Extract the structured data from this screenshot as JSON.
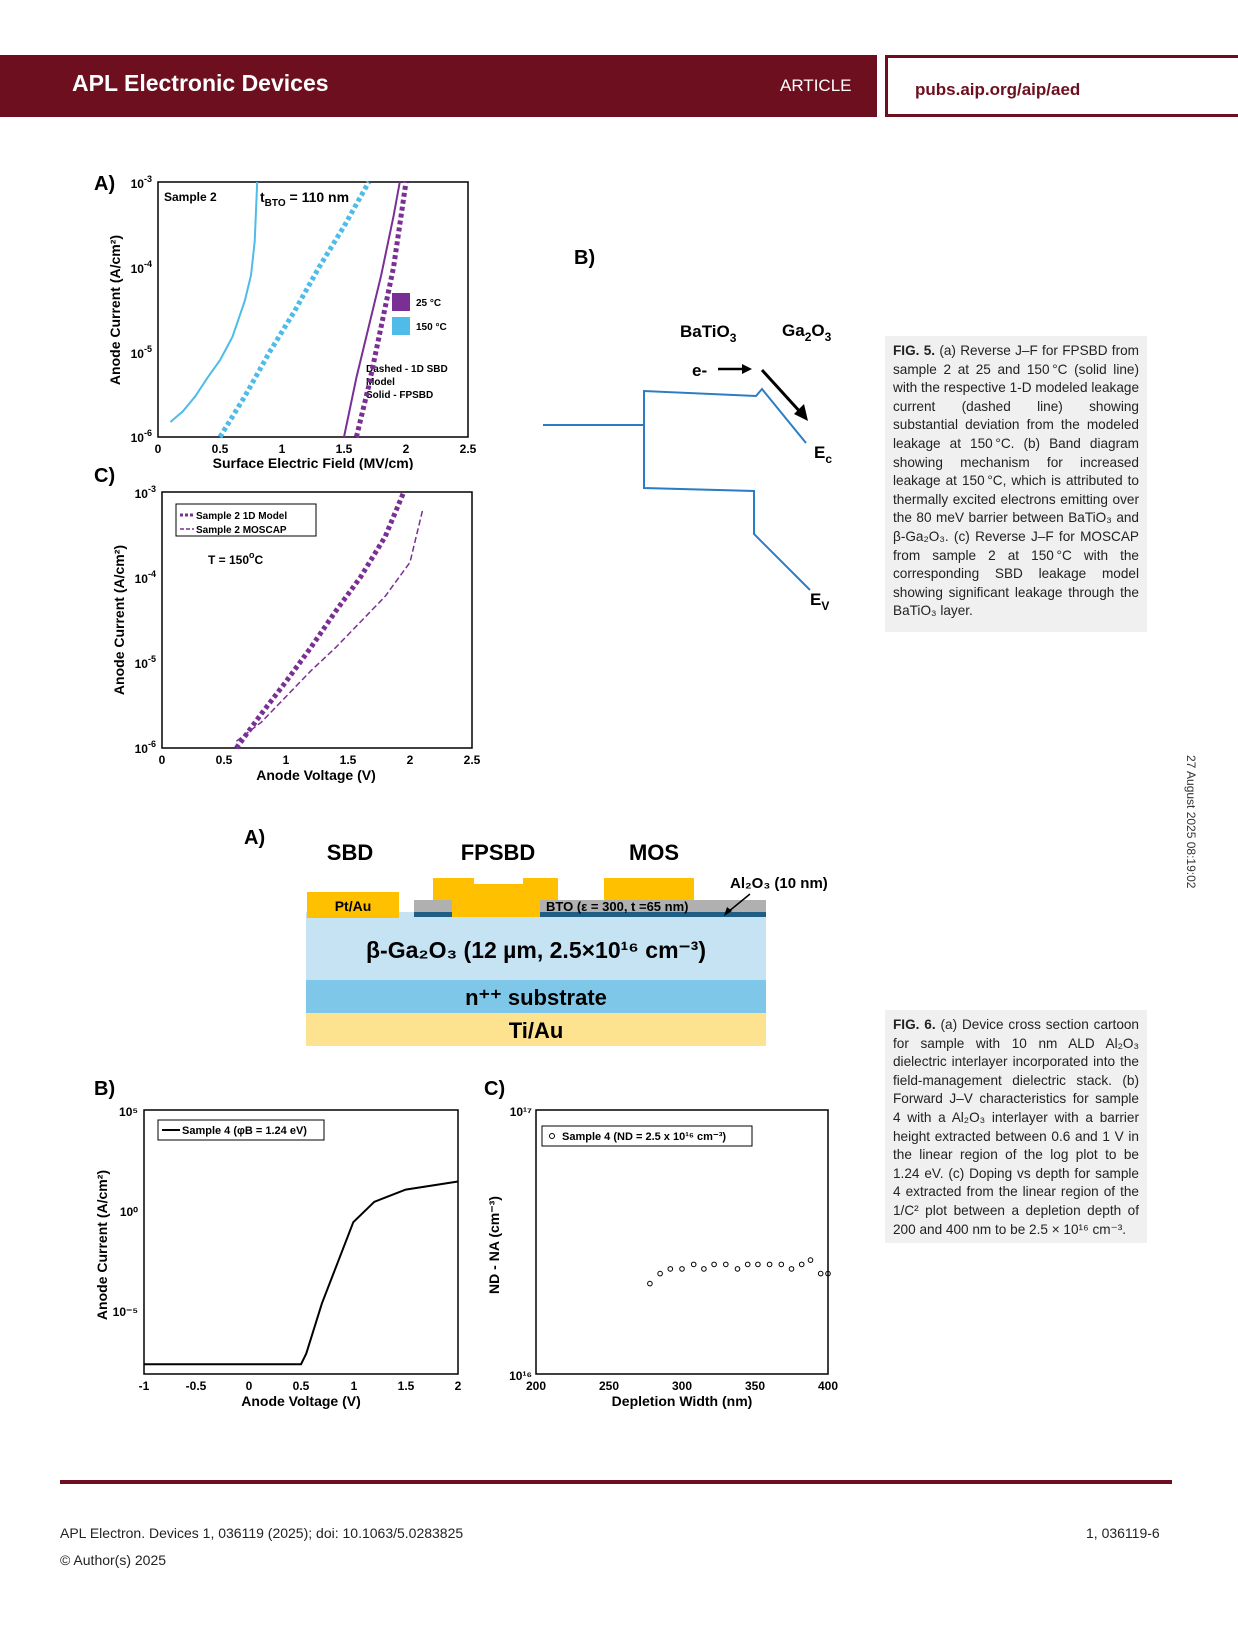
{
  "header": {
    "journal": "APL Electronic Devices",
    "article_label": "ARTICLE",
    "url": "pubs.aip.org/aip/aed"
  },
  "side_stamp": "27 August 2025 08:19:02",
  "fig5": {
    "panel_a": {
      "label": "A)",
      "sample_text": "Sample 2",
      "thickness_text_prefix": "t",
      "thickness_text_sub": "BTO",
      "thickness_text_suffix": " = 110 nm",
      "legend": [
        "25 °C",
        "150 °C"
      ],
      "note_lines": [
        "Dashed - 1D SBD",
        "Model",
        "Solid - FPSBD"
      ],
      "xlabel": "Surface Electric Field (MV/cm)",
      "ylabel": "Anode Current (A/cm²)",
      "xticks": [
        "0",
        "0.5",
        "1",
        "1.5",
        "2",
        "2.5"
      ],
      "yticks": [
        "10",
        "10",
        "10",
        "10"
      ],
      "ytick_exps": [
        "-3",
        "-4",
        "-5",
        "-6"
      ],
      "colors": {
        "t25": "#7a2f94",
        "t150": "#4fbbe8"
      }
    },
    "panel_b": {
      "label": "B)",
      "left_material": "BaTiO",
      "left_material_sub": "3",
      "right_material": "Ga",
      "right_material_sub1": "2",
      "right_material_mid": "O",
      "right_material_sub2": "3",
      "electron": "e-",
      "ec_label": "E",
      "ec_sub": "c",
      "ev_label": "E",
      "ev_sub": "V",
      "line_color": "#2a7dc4"
    },
    "panel_c": {
      "label": "C)",
      "legend": [
        "Sample 2 1D Model",
        "Sample 2 MOSCAP"
      ],
      "temp_prefix": "T = 150",
      "temp_sup": "o",
      "temp_suffix": "C",
      "xlabel": "Anode Voltage (V)",
      "ylabel": "Anode Current (A/cm²)",
      "xticks": [
        "0",
        "0.5",
        "1",
        "1.5",
        "2",
        "2.5"
      ],
      "yticks": [
        "10",
        "10",
        "10",
        "10"
      ],
      "ytick_exps": [
        "-3",
        "-4",
        "-5",
        "-6"
      ]
    },
    "caption_label": "FIG. 5.",
    "caption_text": " (a) Reverse J–F for FPSBD from sample 2 at 25 and 150 °C (solid line) with the respective 1-D modeled leakage current (dashed line) showing substantial deviation from the modeled leakage at 150 °C. (b) Band diagram showing mechanism for increased leakage at 150 °C, which is attributed to thermally excited electrons emitting over the 80 meV barrier between BaTiO₃ and β-Ga₂O₃. (c) Reverse J–F for MOSCAP from sample 2 at 150 °C with the corresponding SBD leakage model showing significant leakage through the BaTiO₃ layer."
  },
  "fig6": {
    "panel_a": {
      "label": "A)",
      "sbd": "SBD",
      "fpsbd": "FPSBD",
      "mos": "MOS",
      "contact": "Pt/Au",
      "bto": "BTO (ε = 300, t =65 nm)",
      "al2o3": "Al₂O₃ (10 nm)",
      "ga2o3": "β-Ga₂O₃ (12 µm, 2.5×10¹⁶ cm⁻³)",
      "substrate": "n⁺⁺ substrate",
      "backside": "Ti/Au",
      "colors": {
        "metal": "#ffc000",
        "ga2o3": "#c6e3f3",
        "substrate": "#7fc7e8",
        "tiau": "#fde28f",
        "bto": "#b0b0b0",
        "al2o3": "#1f5f86"
      }
    },
    "panel_b": {
      "label": "B)",
      "legend": "Sample 4 (φB = 1.24 eV)",
      "xlabel": "Anode Voltage (V)",
      "ylabel": "Anode Current (A/cm²)",
      "xticks": [
        "-1",
        "-0.5",
        "0",
        "0.5",
        "1",
        "1.5",
        "2"
      ],
      "yticks": [
        "10⁵",
        "10⁰",
        "10⁻⁵"
      ]
    },
    "panel_c": {
      "label": "C)",
      "legend": "Sample 4 (ND = 2.5 x 10¹⁶ cm⁻³)",
      "xlabel": "Depletion Width (nm)",
      "ylabel": "ND - NA (cm⁻³)",
      "xticks": [
        "200",
        "250",
        "300",
        "350",
        "400"
      ],
      "yticks": [
        "10¹⁷",
        "10¹⁶"
      ]
    },
    "caption_label": "FIG. 6.",
    "caption_text": " (a) Device cross section cartoon for sample with 10 nm ALD Al₂O₃ dielectric interlayer incorporated into the field-management dielectric stack. (b) Forward J–V characteristics for sample 4 with a Al₂O₃ interlayer with a barrier height extracted between 0.6 and 1 V in the linear region of the log plot to be 1.24 eV. (c) Doping vs depth for sample 4 extracted from the linear region of the 1/C² plot between a depletion depth of 200 and 400 nm to be 2.5 × 10¹⁶ cm⁻³."
  },
  "chart_data": [
    {
      "type": "line",
      "title": "",
      "xlabel": "Surface Electric Field (MV/cm)",
      "ylabel": "Anode Current (A/cm²)",
      "xlim": [
        0,
        2.5
      ],
      "ylim": [
        1e-06,
        0.001
      ],
      "yscale": "log",
      "series": [
        {
          "name": "150 °C",
          "style": "solid",
          "x": [
            0.1,
            0.2,
            0.3,
            0.4,
            0.5,
            0.6,
            0.7,
            0.75,
            0.78,
            0.8
          ],
          "y": [
            1.5e-06,
            2e-06,
            3e-06,
            5e-06,
            8e-06,
            1.5e-05,
            4e-05,
            8e-05,
            0.0002,
            0.001
          ]
        },
        {
          "name": "150 °C",
          "style": "dashed",
          "x": [
            0.5,
            0.7,
            0.9,
            1.1,
            1.3,
            1.5,
            1.7
          ],
          "y": [
            1e-06,
            3e-06,
            1e-05,
            3e-05,
            0.0001,
            0.0003,
            0.001
          ]
        },
        {
          "name": "25 °C",
          "style": "solid",
          "x": [
            1.5,
            1.6,
            1.7,
            1.8,
            1.9,
            1.95
          ],
          "y": [
            1e-06,
            5e-06,
            2e-05,
            8e-05,
            0.0004,
            0.001
          ]
        },
        {
          "name": "25 °C",
          "style": "dashed",
          "x": [
            1.6,
            1.7,
            1.8,
            1.9,
            2.0
          ],
          "y": [
            1e-06,
            4e-06,
            2e-05,
            0.0001,
            0.001
          ]
        }
      ]
    },
    {
      "type": "line",
      "title": "",
      "xlabel": "Anode Voltage (V)",
      "ylabel": "Anode Current (A/cm²)",
      "xlim": [
        0,
        2.5
      ],
      "ylim": [
        1e-06,
        0.001
      ],
      "yscale": "log",
      "series": [
        {
          "name": "Sample 2 1D Model",
          "style": "dashed",
          "x": [
            0.6,
            0.8,
            1.0,
            1.2,
            1.4,
            1.6,
            1.8,
            1.95
          ],
          "y": [
            1e-06,
            2.5e-06,
            6e-06,
            1.5e-05,
            4e-05,
            0.0001,
            0.0003,
            0.001
          ]
        },
        {
          "name": "Sample 2 MOSCAP",
          "style": "dashed",
          "x": [
            0.6,
            0.8,
            1.0,
            1.2,
            1.4,
            1.6,
            1.8,
            2.0,
            2.1
          ],
          "y": [
            1.2e-06,
            2e-06,
            4e-06,
            8e-06,
            1.5e-05,
            3e-05,
            6e-05,
            0.00015,
            0.0006
          ]
        }
      ]
    },
    {
      "type": "line",
      "title": "",
      "xlabel": "Anode Voltage (V)",
      "ylabel": "Anode Current (A/cm²)",
      "xlim": [
        -1,
        2
      ],
      "ylim": [
        1e-08,
        100000.0
      ],
      "yscale": "log",
      "series": [
        {
          "name": "Sample 4 (φB = 1.24 eV)",
          "x": [
            -1,
            -0.5,
            0,
            0.5,
            0.55,
            0.7,
            0.85,
            1.0,
            1.2,
            1.5,
            2.0
          ],
          "y": [
            3e-08,
            3e-08,
            3e-08,
            3e-08,
            1e-07,
            3e-05,
            0.003,
            0.3,
            3,
            12,
            30
          ]
        }
      ]
    },
    {
      "type": "scatter",
      "title": "",
      "xlabel": "Depletion Width (nm)",
      "ylabel": "ND - NA (cm⁻³)",
      "xlim": [
        200,
        400
      ],
      "ylim": [
        1e+16,
        1e+17
      ],
      "yscale": "log",
      "series": [
        {
          "name": "Sample 4 (ND = 2.5 x 10¹⁶ cm⁻³)",
          "x": [
            278,
            285,
            292,
            300,
            308,
            315,
            322,
            330,
            338,
            345,
            352,
            360,
            368,
            375,
            382,
            388,
            395,
            400
          ],
          "y": [
            2.2e+16,
            2.4e+16,
            2.5e+16,
            2.5e+16,
            2.6e+16,
            2.5e+16,
            2.6e+16,
            2.6e+16,
            2.5e+16,
            2.6e+16,
            2.6e+16,
            2.6e+16,
            2.6e+16,
            2.5e+16,
            2.6e+16,
            2.7e+16,
            2.4e+16,
            2.4e+16
          ]
        }
      ]
    }
  ],
  "footer": {
    "citation": "APL Electron. Devices 1, 036119 (2025); doi: 10.1063/5.0283825",
    "copyright": "© Author(s) 2025",
    "page": "1, 036119-6"
  }
}
